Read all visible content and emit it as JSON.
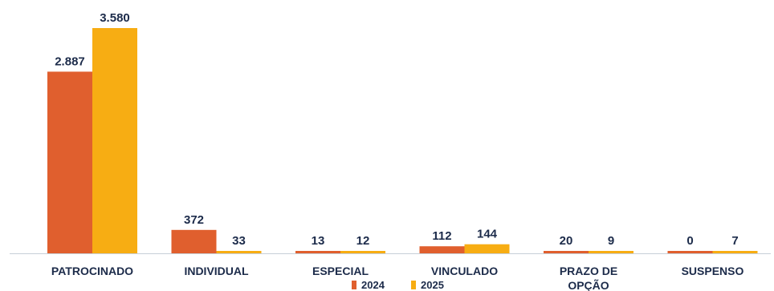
{
  "chart_data": {
    "type": "bar",
    "categories": [
      "PATROCINADO",
      "INDIVIDUAL",
      "ESPECIAL",
      "VINCULADO",
      "PRAZO DE OPÇÃO",
      "SUSPENSO"
    ],
    "category_lines": [
      [
        "PATROCINADO"
      ],
      [
        "INDIVIDUAL"
      ],
      [
        "ESPECIAL"
      ],
      [
        "VINCULADO"
      ],
      [
        "PRAZO DE",
        "OPÇÃO"
      ],
      [
        "SUSPENSO"
      ]
    ],
    "series": [
      {
        "name": "2024",
        "color": "#e05f2e",
        "values": [
          2887,
          372,
          13,
          112,
          20,
          0
        ],
        "labels": [
          "2.887",
          "372",
          "13",
          "112",
          "20",
          "0"
        ]
      },
      {
        "name": "2025",
        "color": "#f7ad13",
        "values": [
          3580,
          33,
          12,
          144,
          9,
          7
        ],
        "labels": [
          "3.580",
          "33",
          "12",
          "144",
          "9",
          "7"
        ]
      }
    ],
    "ylim": [
      0,
      3580
    ],
    "grid": false,
    "legend": "bottom-center",
    "axis_color": "#c7cfd8",
    "label_color": "#1c2b4a"
  }
}
